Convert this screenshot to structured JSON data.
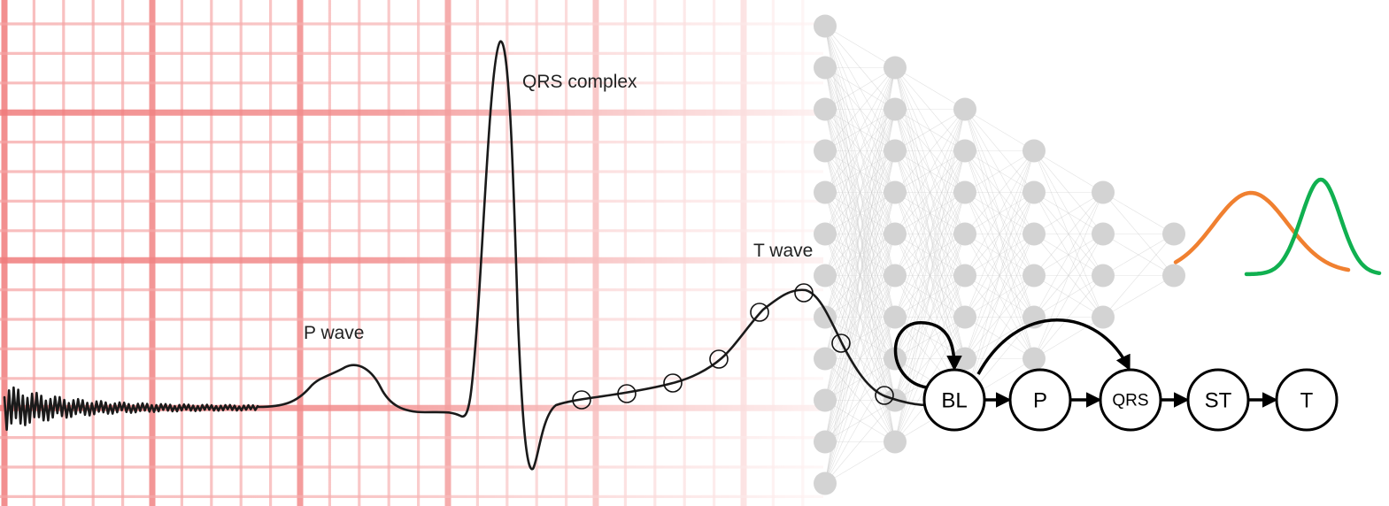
{
  "ecg": {
    "labels": {
      "p_wave": "P wave",
      "qrs_complex": "QRS complex",
      "t_wave": "T wave"
    },
    "colors": {
      "grid": "#f5a3a3",
      "grid_major": "#f07b7b",
      "trace": "#1a1a1a"
    }
  },
  "network": {
    "layer_sizes": [
      12,
      10,
      8,
      6,
      4,
      2
    ],
    "node_color": "#d3d3d3",
    "edge_color": "#c8c8c8"
  },
  "distributions": {
    "colors": [
      "#f08030",
      "#10b050"
    ]
  },
  "state_chain": {
    "states": [
      {
        "id": "bl",
        "label": "BL"
      },
      {
        "id": "p",
        "label": "P"
      },
      {
        "id": "qrs",
        "label": "QRS"
      },
      {
        "id": "st",
        "label": "ST"
      },
      {
        "id": "t",
        "label": "T"
      }
    ]
  }
}
